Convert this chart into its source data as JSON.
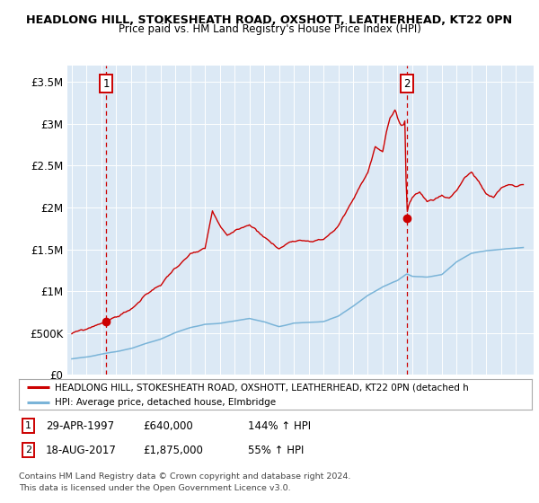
{
  "title1": "HEADLONG HILL, STOKESHEATH ROAD, OXSHOTT, LEATHERHEAD, KT22 0PN",
  "title2": "Price paid vs. HM Land Registry's House Price Index (HPI)",
  "bg_color": "#dce9f5",
  "ylim": [
    0,
    3700000
  ],
  "yticks": [
    0,
    500000,
    1000000,
    1500000,
    2000000,
    2500000,
    3000000,
    3500000
  ],
  "ytick_labels": [
    "£0",
    "£500K",
    "£1M",
    "£1.5M",
    "£2M",
    "£2.5M",
    "£3M",
    "£3.5M"
  ],
  "sale1_year": 1997.33,
  "sale1_price": 640000,
  "sale2_year": 2017.63,
  "sale2_price": 1875000,
  "red_color": "#cc0000",
  "blue_color": "#7ab4d8",
  "legend_red": "HEADLONG HILL, STOKESHEATH ROAD, OXSHOTT, LEATHERHEAD, KT22 0PN (detached h",
  "legend_blue": "HPI: Average price, detached house, Elmbridge",
  "table1_box": "1",
  "table1_date": "29-APR-1997",
  "table1_price": "£640,000",
  "table1_hpi": "144% ↑ HPI",
  "table2_box": "2",
  "table2_date": "18-AUG-2017",
  "table2_price": "£1,875,000",
  "table2_hpi": "55% ↑ HPI",
  "footer1": "Contains HM Land Registry data © Crown copyright and database right 2024.",
  "footer2": "This data is licensed under the Open Government Licence v3.0."
}
